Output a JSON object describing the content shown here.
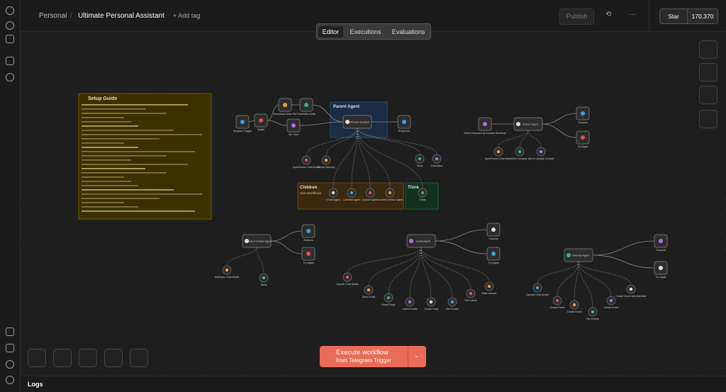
{
  "header": {
    "project": "Personal",
    "workflow": "Ultimate Personal Assistant",
    "add_tag": "+ Add tag",
    "publish": "Publish",
    "star": "Star",
    "stars": "170,370"
  },
  "tabs": [
    "Editor",
    "Executions",
    "Evaluations"
  ],
  "stickies": {
    "setup": "Setup Guide",
    "parent": "Parent Agent",
    "children": "Children",
    "children_sub": "Sub-Workflows",
    "think": "Think"
  },
  "nodes": [
    {
      "label": "Telegram Trigger"
    },
    {
      "label": "Switch"
    },
    {
      "label": "Download Voice File"
    },
    {
      "label": "Transcribe Audio"
    },
    {
      "label": "Set 'Text'"
    },
    {
      "label": "Ultimate Assistant"
    },
    {
      "label": "Response"
    },
    {
      "label": "OpenRouter Chat Model"
    },
    {
      "label": "Simple Memory"
    },
    {
      "label": "Tavily"
    },
    {
      "label": "Calculator"
    },
    {
      "label": "Email Agent"
    },
    {
      "label": "Calendar Agent"
    },
    {
      "label": "Contact Agent"
    },
    {
      "label": "Content Creator Agent"
    },
    {
      "label": "Think"
    },
    {
      "label": "When Executed by Another Workflow"
    },
    {
      "label": "Contact Agent"
    },
    {
      "label": "Success"
    },
    {
      "label": "Try Again"
    },
    {
      "label": "OpenRouter Chat Model"
    },
    {
      "label": "Get Contacts"
    },
    {
      "label": "Add or Update Contact"
    },
    {
      "label": "Content Creator Agent"
    },
    {
      "label": "Success"
    },
    {
      "label": "Try Again"
    },
    {
      "label": "Anthropic Chat Model"
    },
    {
      "label": "Tavily"
    },
    {
      "label": "Email Agent"
    },
    {
      "label": "Success"
    },
    {
      "label": "Try Again"
    },
    {
      "label": "OpenAI Chat Model"
    },
    {
      "label": "Send Email"
    },
    {
      "label": "Email Reply"
    },
    {
      "label": "Label Emails"
    },
    {
      "label": "Create Draft"
    },
    {
      "label": "Get Emails"
    },
    {
      "label": "Get Labels"
    },
    {
      "label": "Mark Unread"
    },
    {
      "label": "Calendar Agent"
    },
    {
      "label": "Success"
    },
    {
      "label": "Try Again"
    },
    {
      "label": "OpenAI Chat Model"
    },
    {
      "label": "Create Event"
    },
    {
      "label": "Create Event"
    },
    {
      "label": "Get Events"
    },
    {
      "label": "Create Event"
    },
    {
      "label": "Create Event with Attendee"
    }
  ],
  "execute": {
    "title": "Execute workflow",
    "subtitle": "from Telegram Trigger"
  },
  "logs": "Logs"
}
